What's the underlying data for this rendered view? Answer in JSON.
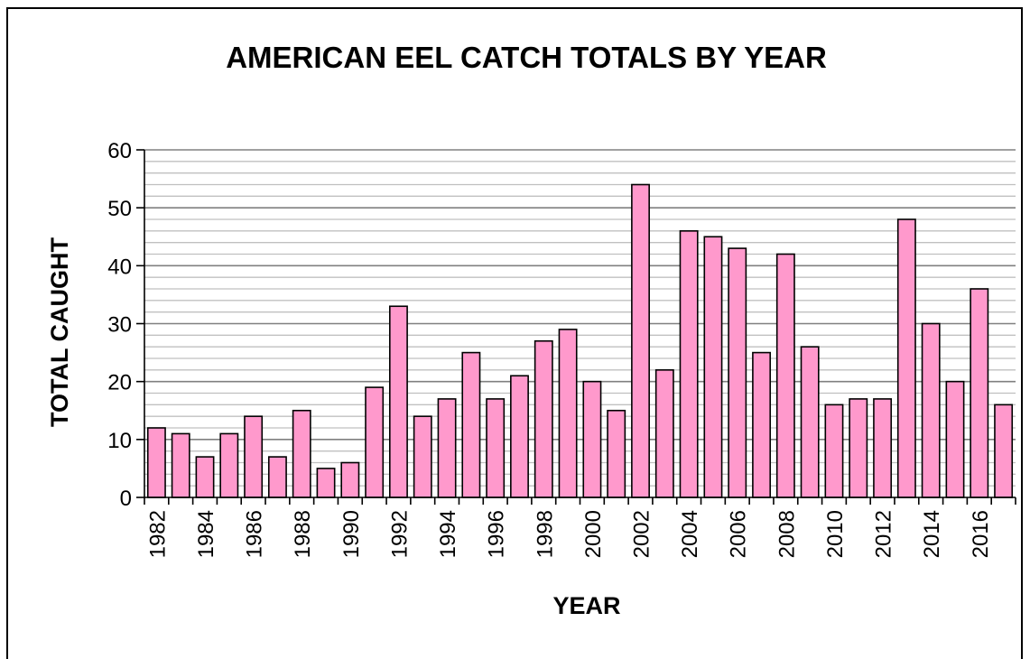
{
  "chart_data": {
    "type": "bar",
    "title": "AMERICAN EEL CATCH TOTALS BY YEAR",
    "xlabel": "YEAR",
    "ylabel": "TOTAL CAUGHT",
    "ylim": [
      0,
      60
    ],
    "y_ticks": [
      0,
      10,
      20,
      30,
      40,
      50,
      60
    ],
    "y_tick_labels": [
      "0",
      "10",
      "20",
      "30",
      "40",
      "50",
      "60"
    ],
    "y_minor_step": 2,
    "grid": true,
    "categories": [
      "1982",
      "1983",
      "1984",
      "1985",
      "1986",
      "1987",
      "1988",
      "1989",
      "1990",
      "1991",
      "1992",
      "1993",
      "1994",
      "1995",
      "1996",
      "1997",
      "1998",
      "1999",
      "2000",
      "2001",
      "2002",
      "2003",
      "2004",
      "2005",
      "2006",
      "2007",
      "2008",
      "2009",
      "2010",
      "2011",
      "2012",
      "2013",
      "2014",
      "2015",
      "2016",
      "2017"
    ],
    "x_tick_labels": [
      "1982",
      "",
      "1984",
      "",
      "1986",
      "",
      "1988",
      "",
      "1990",
      "",
      "1992",
      "",
      "1994",
      "",
      "1996",
      "",
      "1998",
      "",
      "2000",
      "",
      "2002",
      "",
      "2004",
      "",
      "2006",
      "",
      "2008",
      "",
      "2010",
      "",
      "2012",
      "",
      "2014",
      "",
      "2016",
      ""
    ],
    "values": [
      12,
      11,
      7,
      11,
      14,
      7,
      15,
      5,
      6,
      19,
      33,
      14,
      17,
      25,
      17,
      21,
      27,
      29,
      20,
      15,
      54,
      22,
      46,
      45,
      43,
      25,
      42,
      26,
      16,
      17,
      17,
      48,
      30,
      20,
      36,
      16
    ],
    "bar_color": "#ff99cc",
    "bar_stroke": "#000000",
    "grid_major_color": "#808080",
    "grid_minor_color": "#c0c0c0"
  }
}
